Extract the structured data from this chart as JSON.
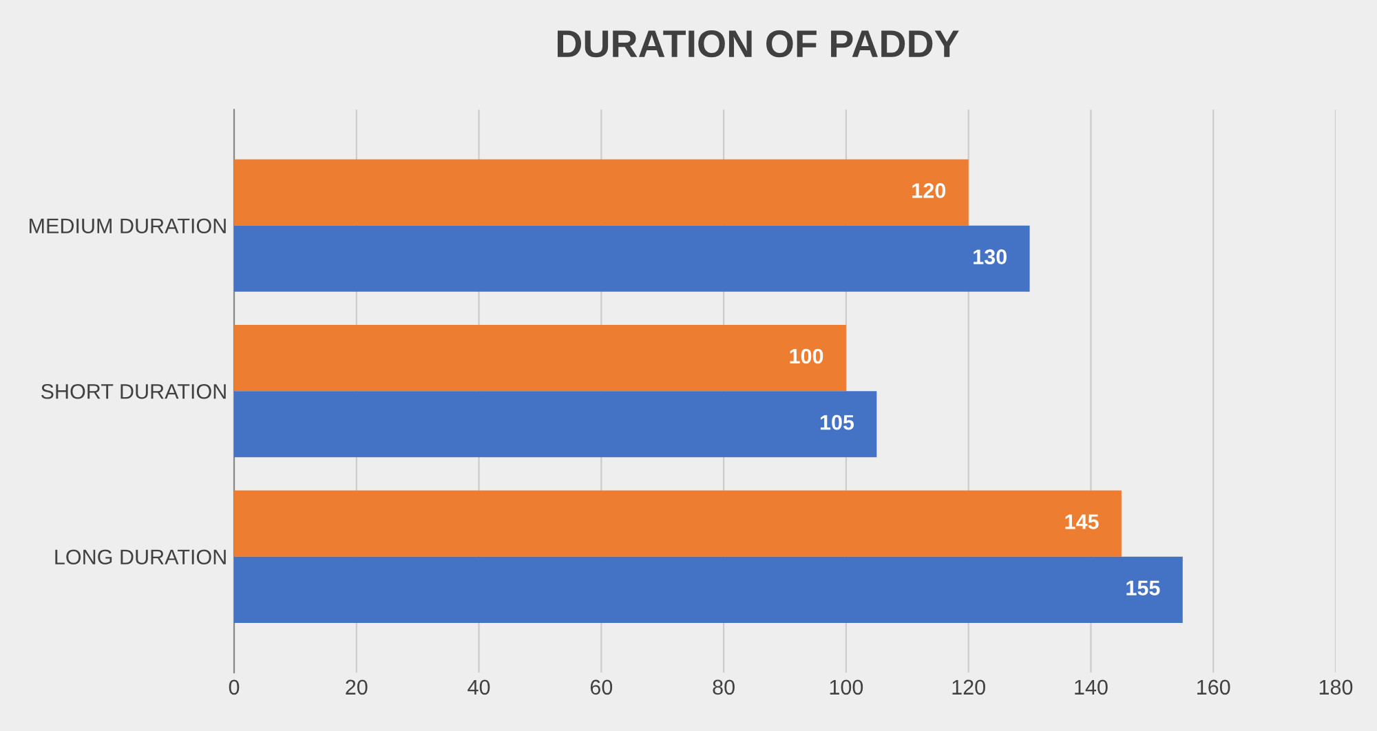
{
  "chart_data": {
    "type": "bar",
    "orientation": "horizontal",
    "title": "DURATION OF PADDY",
    "categories": [
      "MEDIUM DURATION",
      "SHORT DURATION",
      "LONG DURATION"
    ],
    "series": [
      {
        "color": "#ed7d31",
        "values": [
          120,
          100,
          145
        ]
      },
      {
        "color": "#4472c4",
        "values": [
          130,
          105,
          155
        ]
      }
    ],
    "xlim": [
      0,
      180
    ],
    "xticks": [
      0,
      20,
      40,
      60,
      80,
      100,
      120,
      140,
      160,
      180
    ],
    "grid": "x",
    "legend": false,
    "data_labels": true
  }
}
